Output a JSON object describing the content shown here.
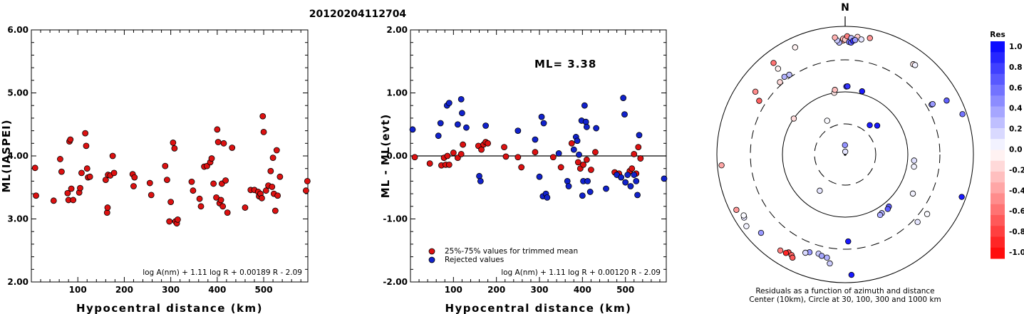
{
  "title": "20120204112704",
  "chart_data": [
    {
      "type": "scatter",
      "xlabel": "Hypocentral distance (km)",
      "ylabel": "ML(IASPEI)",
      "xlim": [
        0,
        595
      ],
      "ylim": [
        2.0,
        6.0
      ],
      "xticks": [
        100,
        200,
        300,
        400,
        500
      ],
      "yticks": [
        "2.00",
        "3.00",
        "4.00",
        "5.00",
        "6.00"
      ],
      "yticks_values": [
        2.0,
        3.0,
        4.0,
        5.0,
        6.0
      ],
      "formula": "log A(nm) + 1.11 log R + 0.00189 R - 2.09",
      "series": [
        {
          "color": "#dd1111",
          "points": [
            [
              8,
              3.81
            ],
            [
              10,
              3.37
            ],
            [
              48,
              3.29
            ],
            [
              62,
              3.95
            ],
            [
              65,
              3.75
            ],
            [
              78,
              3.41
            ],
            [
              80,
              3.3
            ],
            [
              82,
              4.23
            ],
            [
              84,
              4.26
            ],
            [
              86,
              3.48
            ],
            [
              90,
              3.3
            ],
            [
              103,
              3.42
            ],
            [
              105,
              3.49
            ],
            [
              108,
              3.73
            ],
            [
              116,
              4.36
            ],
            [
              118,
              4.16
            ],
            [
              120,
              3.8
            ],
            [
              122,
              3.66
            ],
            [
              126,
              3.67
            ],
            [
              160,
              3.62
            ],
            [
              163,
              3.1
            ],
            [
              164,
              3.18
            ],
            [
              165,
              3.7
            ],
            [
              170,
              3.69
            ],
            [
              175,
              4.0
            ],
            [
              178,
              3.73
            ],
            [
              218,
              3.71
            ],
            [
              220,
              3.52
            ],
            [
              222,
              3.66
            ],
            [
              255,
              3.57
            ],
            [
              258,
              3.38
            ],
            [
              288,
              3.84
            ],
            [
              292,
              3.62
            ],
            [
              297,
              2.96
            ],
            [
              300,
              3.27
            ],
            [
              305,
              4.21
            ],
            [
              308,
              4.12
            ],
            [
              310,
              2.96
            ],
            [
              313,
              2.93
            ],
            [
              315,
              2.99
            ],
            [
              345,
              3.59
            ],
            [
              348,
              3.45
            ],
            [
              362,
              3.32
            ],
            [
              365,
              3.2
            ],
            [
              372,
              3.83
            ],
            [
              378,
              3.84
            ],
            [
              385,
              3.9
            ],
            [
              388,
              3.96
            ],
            [
              392,
              3.56
            ],
            [
              398,
              3.34
            ],
            [
              400,
              4.42
            ],
            [
              402,
              4.22
            ],
            [
              405,
              3.25
            ],
            [
              408,
              3.3
            ],
            [
              410,
              3.56
            ],
            [
              412,
              3.2
            ],
            [
              414,
              4.2
            ],
            [
              418,
              3.61
            ],
            [
              422,
              3.1
            ],
            [
              432,
              4.13
            ],
            [
              460,
              3.18
            ],
            [
              472,
              3.46
            ],
            [
              480,
              3.46
            ],
            [
              488,
              3.43
            ],
            [
              490,
              3.36
            ],
            [
              493,
              3.4
            ],
            [
              496,
              3.33
            ],
            [
              498,
              4.63
            ],
            [
              500,
              4.38
            ],
            [
              505,
              3.45
            ],
            [
              510,
              3.53
            ],
            [
              515,
              3.76
            ],
            [
              518,
              3.51
            ],
            [
              520,
              3.97
            ],
            [
              522,
              3.4
            ],
            [
              525,
              3.13
            ],
            [
              528,
              4.09
            ],
            [
              530,
              3.37
            ],
            [
              535,
              3.67
            ],
            [
              591,
              3.45
            ],
            [
              594,
              3.6
            ]
          ]
        }
      ]
    },
    {
      "type": "scatter",
      "xlabel": "Hypocentral distance (km)",
      "ylabel": "ML - ML(evt)",
      "xlim": [
        0,
        595
      ],
      "ylim": [
        -2.0,
        2.0
      ],
      "xticks": [
        100,
        200,
        300,
        400,
        500
      ],
      "yticks": [
        "-2.00",
        "-1.00",
        "0.00",
        "1.00",
        "2.00"
      ],
      "yticks_values": [
        -2.0,
        -1.0,
        0.0,
        1.0,
        2.0
      ],
      "annotation": "ML= 3.38",
      "formula": "log A(nm) + 1.11 log R + 0.00120 R - 2.09",
      "legend": [
        {
          "label": "25%-75% values for trimmed mean",
          "color": "#dd1111"
        },
        {
          "label": "Rejected values",
          "color": "#1122cc"
        }
      ],
      "series": [
        {
          "name": "25%-75% values for trimmed mean",
          "color": "#dd1111",
          "points": [
            [
              10,
              -0.02
            ],
            [
              45,
              -0.12
            ],
            [
              72,
              -0.15
            ],
            [
              78,
              -0.03
            ],
            [
              82,
              -0.14
            ],
            [
              86,
              0.0
            ],
            [
              90,
              -0.14
            ],
            [
              100,
              0.05
            ],
            [
              110,
              -0.03
            ],
            [
              118,
              0.03
            ],
            [
              122,
              0.18
            ],
            [
              158,
              0.16
            ],
            [
              165,
              0.1
            ],
            [
              170,
              0.18
            ],
            [
              175,
              0.22
            ],
            [
              180,
              0.2
            ],
            [
              218,
              0.14
            ],
            [
              222,
              -0.01
            ],
            [
              250,
              -0.02
            ],
            [
              258,
              -0.18
            ],
            [
              290,
              0.06
            ],
            [
              332,
              -0.02
            ],
            [
              350,
              -0.18
            ],
            [
              375,
              0.2
            ],
            [
              390,
              -0.1
            ],
            [
              395,
              -0.2
            ],
            [
              402,
              -0.14
            ],
            [
              410,
              -0.06
            ],
            [
              420,
              -0.22
            ],
            [
              430,
              0.06
            ],
            [
              475,
              -0.26
            ],
            [
              485,
              -0.28
            ],
            [
              510,
              -0.24
            ],
            [
              515,
              -0.2
            ],
            [
              520,
              0.03
            ],
            [
              525,
              -0.28
            ],
            [
              530,
              0.14
            ],
            [
              535,
              -0.04
            ]
          ]
        },
        {
          "name": "Rejected values",
          "color": "#1122cc",
          "points": [
            [
              5,
              0.42
            ],
            [
              65,
              0.32
            ],
            [
              70,
              0.52
            ],
            [
              85,
              0.8
            ],
            [
              90,
              0.84
            ],
            [
              110,
              0.5
            ],
            [
              118,
              0.9
            ],
            [
              120,
              0.68
            ],
            [
              130,
              0.45
            ],
            [
              160,
              -0.32
            ],
            [
              163,
              -0.4
            ],
            [
              175,
              0.48
            ],
            [
              250,
              0.4
            ],
            [
              290,
              0.26
            ],
            [
              300,
              -0.33
            ],
            [
              305,
              0.62
            ],
            [
              308,
              -0.64
            ],
            [
              310,
              0.52
            ],
            [
              315,
              -0.6
            ],
            [
              318,
              -0.66
            ],
            [
              345,
              0.04
            ],
            [
              365,
              -0.4
            ],
            [
              368,
              -0.48
            ],
            [
              380,
              0.1
            ],
            [
              385,
              0.3
            ],
            [
              388,
              0.24
            ],
            [
              392,
              0.02
            ],
            [
              398,
              0.56
            ],
            [
              400,
              -0.63
            ],
            [
              402,
              -0.4
            ],
            [
              405,
              0.8
            ],
            [
              408,
              0.54
            ],
            [
              410,
              0.46
            ],
            [
              412,
              -0.4
            ],
            [
              418,
              -0.57
            ],
            [
              432,
              0.44
            ],
            [
              455,
              -0.52
            ],
            [
              480,
              -0.3
            ],
            [
              490,
              -0.34
            ],
            [
              495,
              0.92
            ],
            [
              498,
              0.66
            ],
            [
              500,
              -0.42
            ],
            [
              505,
              -0.3
            ],
            [
              512,
              -0.48
            ],
            [
              520,
              -0.3
            ],
            [
              525,
              -0.4
            ],
            [
              528,
              -0.62
            ],
            [
              532,
              0.33
            ],
            [
              590,
              -0.36
            ]
          ]
        }
      ]
    },
    {
      "type": "scatter",
      "subtype": "polar",
      "north_label": "N",
      "caption": [
        "Residuals as a function of azimuth and distance",
        "Center (10km), Circle at 30, 100, 300 and 1000 km"
      ],
      "rings_km": [
        30,
        100,
        300,
        1000
      ],
      "colorbar": {
        "title": "Res",
        "ticks": [
          "1.0",
          "0.8",
          "0.6",
          "0.4",
          "0.2",
          "0.0",
          "-0.2",
          "-0.4",
          "-0.6",
          "-0.8",
          "-1.0"
        ],
        "max_color": "#0000ee",
        "zero_color": "#ffffff",
        "min_color": "#ee0000"
      },
      "stations": [
        {
          "az": 2,
          "dist": 10,
          "res": 0.1
        },
        {
          "az": -1,
          "dist": 14,
          "res": 0.42
        },
        {
          "az": -28,
          "dist": 40,
          "res": 0.02
        },
        {
          "az": 40,
          "dist": 40,
          "res": 0.9
        },
        {
          "az": 48,
          "dist": 48,
          "res": 0.9
        },
        {
          "az": -10,
          "dist": 100,
          "res": -0.1
        },
        {
          "az": -9,
          "dist": 110,
          "res": -0.25
        },
        {
          "az": 1,
          "dist": 120,
          "res": 0.8
        },
        {
          "az": 2,
          "dist": 121,
          "res": 0.8
        },
        {
          "az": 15,
          "dist": 110,
          "res": 0.9
        },
        {
          "az": 178,
          "dist": 230,
          "res": 0.9
        },
        {
          "az": -55,
          "dist": 100,
          "res": -0.15
        },
        {
          "az": -145,
          "dist": 50,
          "res": 0.1
        },
        {
          "az": 95,
          "dist": 125,
          "res": 0.12
        },
        {
          "az": 100,
          "dist": 128,
          "res": 0.05
        },
        {
          "az": 120,
          "dist": 170,
          "res": 0.05
        },
        {
          "az": 140,
          "dist": 120,
          "res": 0.62
        },
        {
          "az": 142,
          "dist": 125,
          "res": 0.64
        },
        {
          "az": 148,
          "dist": 125,
          "res": 0.3
        },
        {
          "az": 150,
          "dist": 128,
          "res": 0.32
        },
        {
          "az": -42,
          "dist": 330,
          "res": -0.15
        },
        {
          "az": -38,
          "dist": 345,
          "res": 0.3
        },
        {
          "az": -35,
          "dist": 330,
          "res": 0.25
        },
        {
          "az": -55,
          "dist": 510,
          "res": -0.45
        },
        {
          "az": -58,
          "dist": 380,
          "res": -0.62
        },
        {
          "az": 60,
          "dist": 360,
          "res": 0.5
        },
        {
          "az": 60,
          "dist": 375,
          "res": 0.4
        },
        {
          "az": 62,
          "dist": 620,
          "res": 0.62
        },
        {
          "az": 71,
          "dist": 860,
          "res": 0.55
        },
        {
          "az": -25,
          "dist": 700,
          "res": -0.05
        },
        {
          "az": -1,
          "dist": 600,
          "res": -0.4
        },
        {
          "az": -1,
          "dist": 640,
          "res": -0.3
        },
        {
          "az": 0,
          "dist": 620,
          "res": -0.2
        },
        {
          "az": 1,
          "dist": 700,
          "res": -0.5
        },
        {
          "az": 2,
          "dist": 570,
          "res": 0.5
        },
        {
          "az": 3,
          "dist": 560,
          "res": 0.6
        },
        {
          "az": 3,
          "dist": 660,
          "res": 0.3
        },
        {
          "az": 4,
          "dist": 600,
          "res": 0.8
        },
        {
          "az": -3,
          "dist": 560,
          "res": 0.3
        },
        {
          "az": -4,
          "dist": 610,
          "res": 0.2
        },
        {
          "az": -5,
          "dist": 680,
          "res": -0.3
        },
        {
          "az": 6,
          "dist": 700,
          "res": -0.2
        },
        {
          "az": 8,
          "dist": 650,
          "res": 0.1
        },
        {
          "az": 12,
          "dist": 720,
          "res": -0.4
        },
        {
          "az": 5,
          "dist": 620,
          "res": 0.4
        },
        {
          "az": -38,
          "dist": 650,
          "res": -0.55
        },
        {
          "az": -38,
          "dist": 500,
          "res": -0.05
        },
        {
          "az": 37,
          "dist": 580,
          "res": -0.1
        },
        {
          "az": 38,
          "dist": 590,
          "res": 0.05
        },
        {
          "az": -95,
          "dist": 860,
          "res": -0.35
        },
        {
          "az": -117,
          "dist": 800,
          "res": -0.4
        },
        {
          "az": -122,
          "dist": 720,
          "res": 0.1
        },
        {
          "az": -121,
          "dist": 700,
          "res": 0.02
        },
        {
          "az": -126,
          "dist": 800,
          "res": 0.05
        },
        {
          "az": -133,
          "dist": 620,
          "res": 0.4
        },
        {
          "az": 110,
          "dist": 860,
          "res": 0.9
        },
        {
          "az": 133,
          "dist": 350,
          "res": 0.1
        },
        {
          "az": 126,
          "dist": 380,
          "res": 0.02
        },
        {
          "az": -150,
          "dist": 580,
          "res": -0.7
        },
        {
          "az": -149,
          "dist": 620,
          "res": -0.85
        },
        {
          "az": -152,
          "dist": 600,
          "res": -0.6
        },
        {
          "az": -146,
          "dist": 640,
          "res": -0.5
        },
        {
          "az": -153,
          "dist": 640,
          "res": -0.65
        },
        {
          "az": -160,
          "dist": 420,
          "res": 0.4
        },
        {
          "az": -165,
          "dist": 400,
          "res": 0.2
        },
        {
          "az": -167,
          "dist": 420,
          "res": 0.35
        },
        {
          "az": -170,
          "dist": 430,
          "res": 0.3
        },
        {
          "az": -158,
          "dist": 450,
          "res": 0.15
        },
        {
          "az": -172,
          "dist": 520,
          "res": 0.2
        },
        {
          "az": 177,
          "dist": 760,
          "res": 0.9
        }
      ]
    }
  ]
}
